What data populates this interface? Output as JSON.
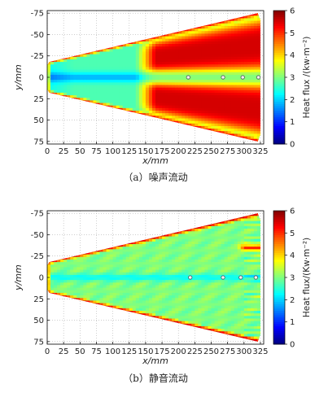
{
  "chart_data": [
    {
      "type": "heatmap",
      "panel": "(a)",
      "caption": "（a）噪声流动",
      "xlabel": "x/mm",
      "ylabel": "y/mm",
      "xlim": [
        0,
        330
      ],
      "ylim": [
        -78,
        78
      ],
      "y_inverted": true,
      "xticks": [
        0,
        25,
        50,
        75,
        100,
        125,
        150,
        175,
        200,
        225,
        250,
        275,
        300,
        325
      ],
      "yticks": [
        -75,
        -50,
        -25,
        0,
        25,
        50,
        75
      ],
      "grid": true,
      "colorbar": {
        "label": "Heat flux /(kw·m⁻²)",
        "range": [
          0,
          6
        ],
        "ticks": [
          0,
          1,
          2,
          3,
          4,
          5,
          6
        ],
        "colormap": "jet"
      },
      "region": {
        "shape": "delta",
        "apex_x": 0,
        "apex_half_width": 18,
        "base_x": 325,
        "base_half_width": 75
      },
      "features": {
        "background_heat_flux": 2.7,
        "centerline_min": 1.8,
        "centerline_low_x": [
          0,
          175
        ],
        "high_lobes_start_x": 155,
        "high_lobes_heat_flux": 5.5,
        "centerline_x_between_lobes": 3.0,
        "edge_heat_flux": 5.2,
        "markers_x": [
          215,
          268,
          298,
          322
        ]
      }
    },
    {
      "type": "heatmap",
      "panel": "(b)",
      "caption": "（b）静音流动",
      "xlabel": "x/mm",
      "ylabel": "y/mm",
      "xlim": [
        0,
        330
      ],
      "ylim": [
        -78,
        78
      ],
      "y_inverted": true,
      "xticks": [
        0,
        25,
        50,
        75,
        100,
        125,
        150,
        175,
        200,
        225,
        250,
        275,
        300,
        325
      ],
      "yticks": [
        -75,
        -50,
        -25,
        0,
        25,
        50,
        75
      ],
      "grid": true,
      "colorbar": {
        "label": "Heat flux/(Kw·m⁻²)",
        "range": [
          0,
          6
        ],
        "ticks": [
          0,
          1,
          2,
          3,
          4,
          5,
          6
        ],
        "colormap": "jet"
      },
      "region": {
        "shape": "delta",
        "apex_x": 0,
        "apex_half_width": 18,
        "base_x": 325,
        "base_half_width": 75
      },
      "features": {
        "background_heat_flux": 3.0,
        "centerline_min": 2.3,
        "edge_heat_flux": 5.5,
        "streak_y": -35,
        "streak_x": [
          290,
          325
        ],
        "streak_heat_flux": 5.0,
        "markers_x": [
          218,
          268,
          295,
          318
        ]
      }
    }
  ]
}
